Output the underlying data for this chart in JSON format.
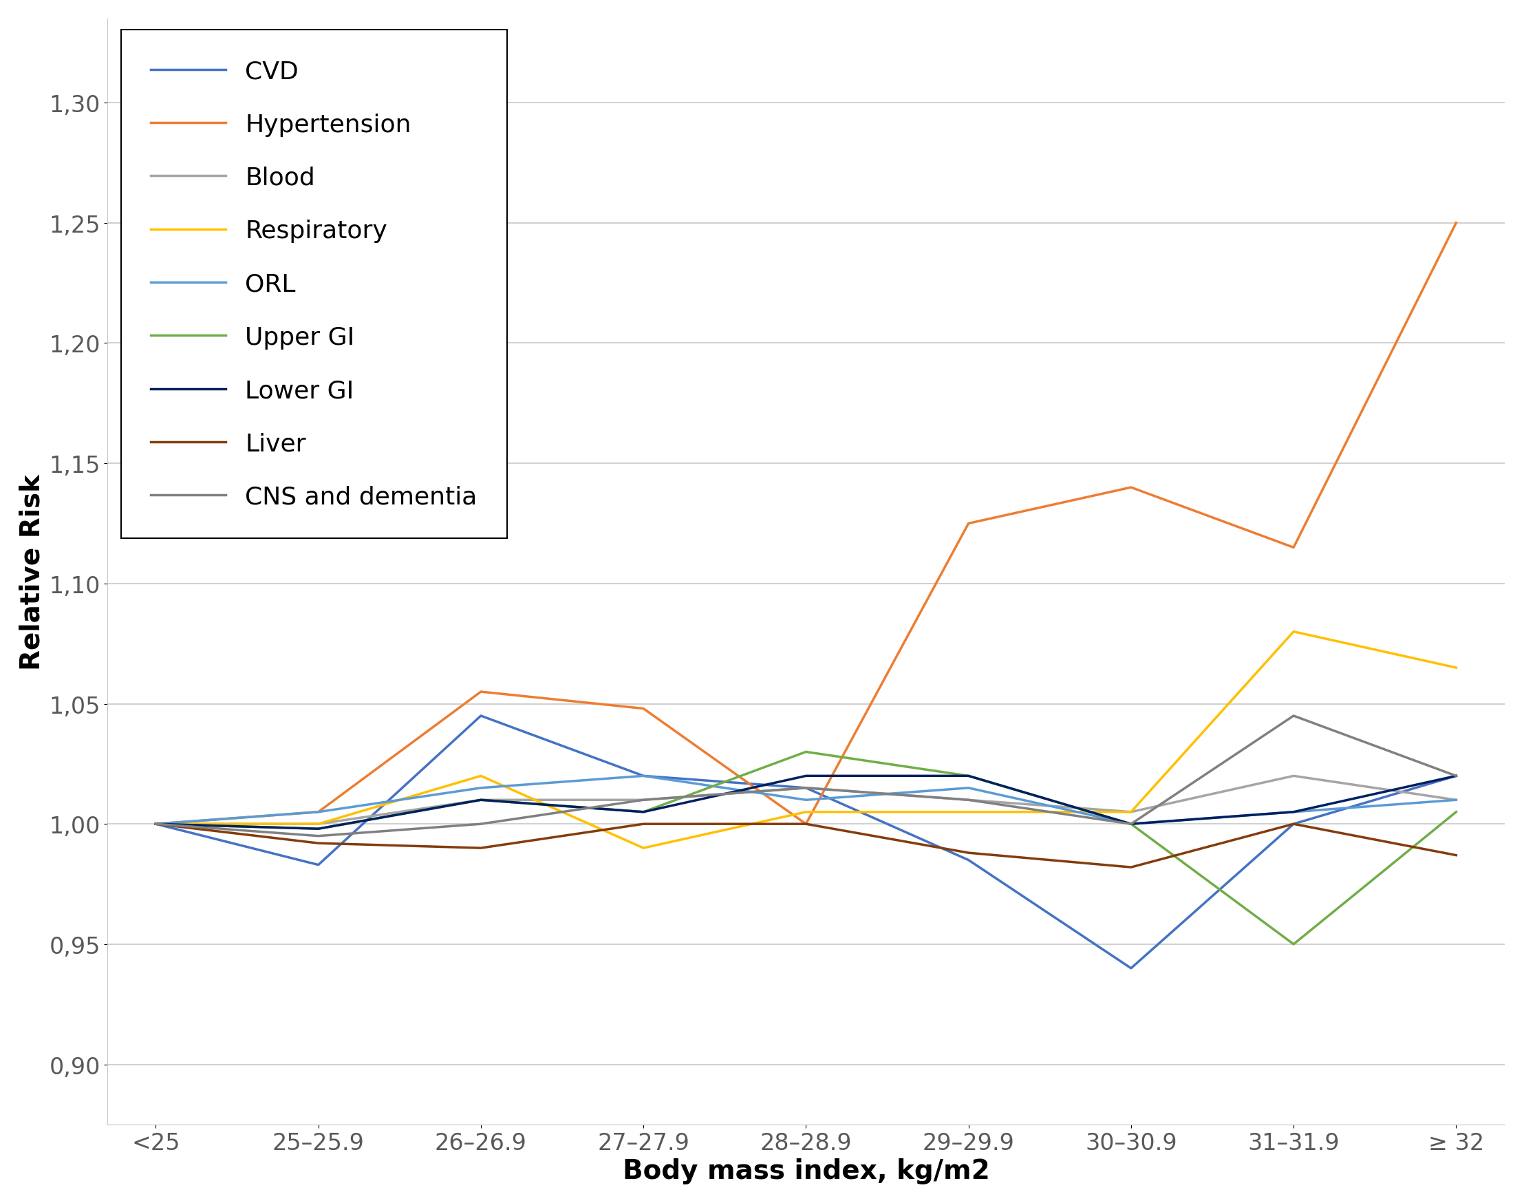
{
  "x_labels": [
    "<25",
    "25–25.9",
    "26–26.9",
    "27–27.9",
    "28–28.9",
    "29–29.9",
    "30–30.9",
    "31–31.9",
    "≥ 32"
  ],
  "series": {
    "CVD": {
      "color": "#4472C4",
      "values": [
        1.0,
        0.983,
        1.045,
        1.02,
        1.015,
        0.985,
        0.94,
        1.0,
        1.02
      ]
    },
    "Hypertension": {
      "color": "#ED7D31",
      "values": [
        1.0,
        1.005,
        1.055,
        1.048,
        1.0,
        1.125,
        1.14,
        1.115,
        1.25
      ]
    },
    "Blood": {
      "color": "#A5A5A5",
      "values": [
        1.0,
        1.0,
        1.01,
        1.01,
        1.015,
        1.01,
        1.005,
        1.02,
        1.01
      ]
    },
    "Respiratory": {
      "color": "#FFC000",
      "values": [
        1.0,
        1.0,
        1.02,
        0.99,
        1.005,
        1.005,
        1.005,
        1.08,
        1.065
      ]
    },
    "ORL": {
      "color": "#5B9BD5",
      "values": [
        1.0,
        1.005,
        1.015,
        1.02,
        1.01,
        1.015,
        1.0,
        1.005,
        1.01
      ]
    },
    "Upper GI": {
      "color": "#70AD47",
      "values": [
        1.0,
        0.998,
        1.01,
        1.005,
        1.03,
        1.02,
        1.0,
        0.95,
        1.005
      ]
    },
    "Lower GI": {
      "color": "#002060",
      "values": [
        1.0,
        0.998,
        1.01,
        1.005,
        1.02,
        1.02,
        1.0,
        1.005,
        1.02
      ]
    },
    "Liver": {
      "color": "#843C0C",
      "values": [
        1.0,
        0.992,
        0.99,
        1.0,
        1.0,
        0.988,
        0.982,
        1.0,
        0.987
      ]
    },
    "CNS and dementia": {
      "color": "#808080",
      "values": [
        1.0,
        0.995,
        1.0,
        1.01,
        1.015,
        1.01,
        1.0,
        1.045,
        1.02
      ]
    }
  },
  "ylim": [
    0.875,
    1.335
  ],
  "yticks": [
    0.9,
    0.95,
    1.0,
    1.05,
    1.1,
    1.15,
    1.2,
    1.25,
    1.3
  ],
  "ylabel": "Relative Risk",
  "xlabel": "Body mass index, kg/m2",
  "line_width": 2.5,
  "legend_fontsize": 26,
  "axis_label_fontsize": 28,
  "tick_fontsize": 24,
  "tick_color": "#595959",
  "grid_color": "#c8c8c8",
  "background_color": "#ffffff"
}
